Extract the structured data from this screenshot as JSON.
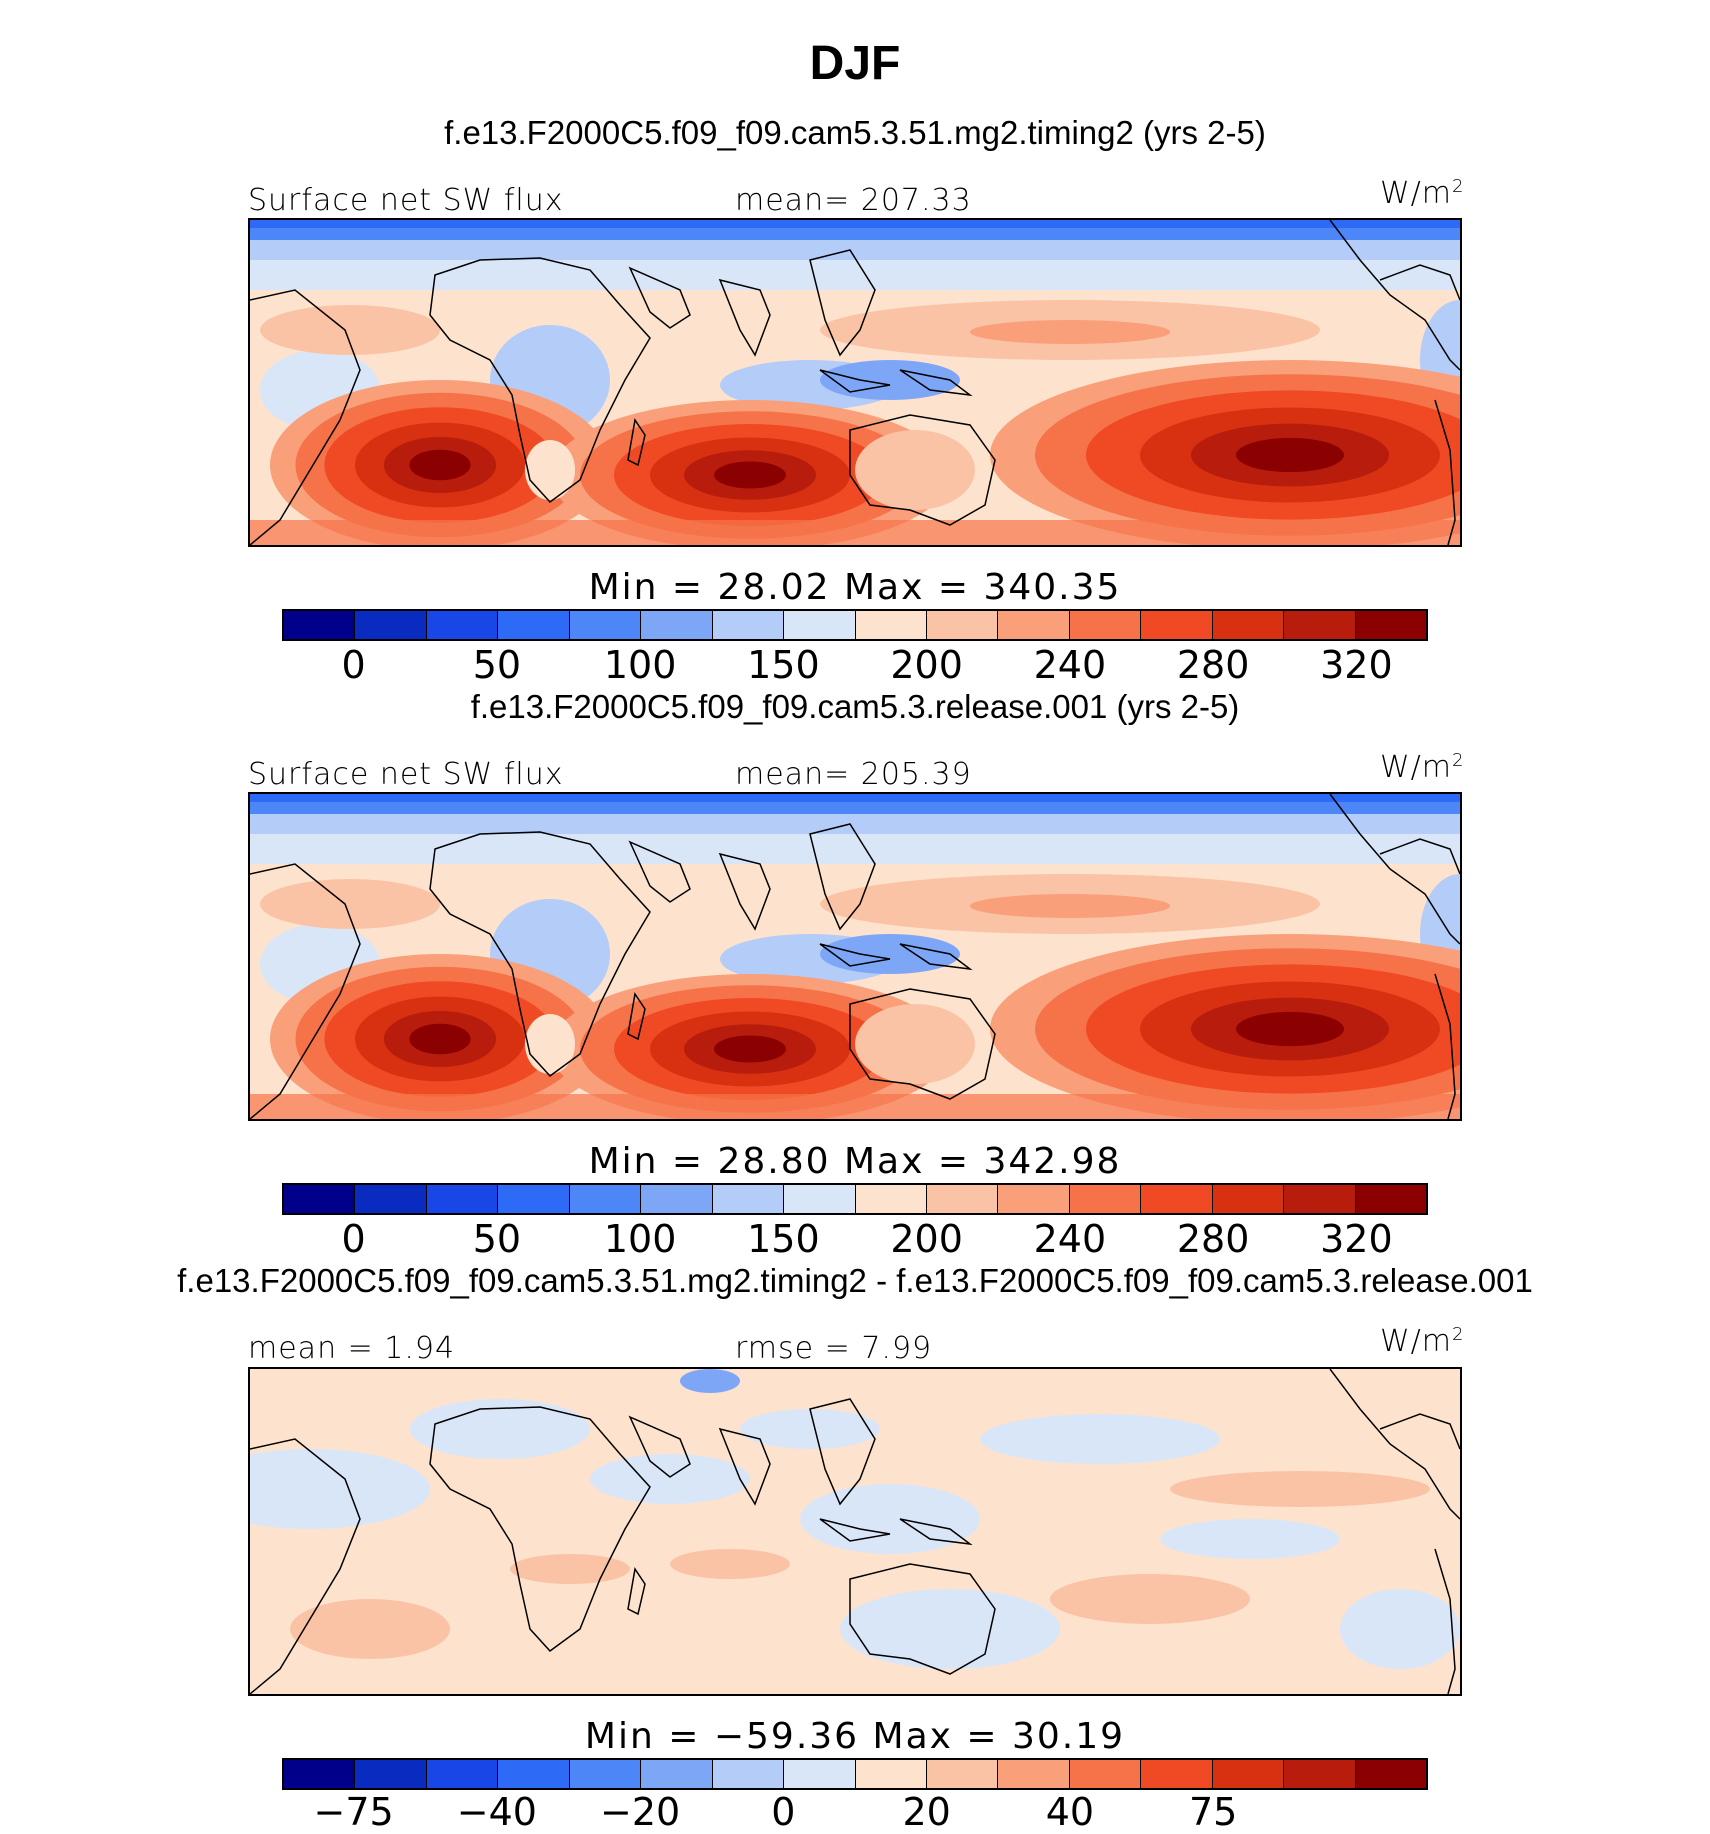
{
  "title": "DJF",
  "panels": [
    {
      "case": "f.e13.F2000C5.f09_f09.cam5.3.51.mg2.timing2 (yrs 2-5)",
      "left_label": "Surface net SW flux",
      "center_label": "mean= 207.33",
      "unit": "W/m",
      "unit_sup": "2",
      "minmax": "Min =  28.02 Max = 340.35",
      "field_type": "absolute",
      "cbar_ticks": [
        "0",
        "50",
        "100",
        "150",
        "200",
        "240",
        "280",
        "320"
      ]
    },
    {
      "case": "f.e13.F2000C5.f09_f09.cam5.3.release.001 (yrs 2-5)",
      "left_label": "Surface net SW flux",
      "center_label": "mean= 205.39",
      "unit": "W/m",
      "unit_sup": "2",
      "minmax": "Min =  28.80 Max = 342.98",
      "field_type": "absolute",
      "cbar_ticks": [
        "0",
        "50",
        "100",
        "150",
        "200",
        "240",
        "280",
        "320"
      ]
    },
    {
      "case": "f.e13.F2000C5.f09_f09.cam5.3.51.mg2.timing2 - f.e13.F2000C5.f09_f09.cam5.3.release.001",
      "left_label": "mean =   1.94",
      "center_label": "rmse =   7.99",
      "unit": "W/m",
      "unit_sup": "2",
      "minmax": "Min = −59.36 Max =  30.19",
      "field_type": "difference",
      "cbar_ticks": [
        "−75",
        "−40",
        "−20",
        "0",
        "20",
        "40",
        "75"
      ]
    }
  ],
  "colormap": [
    "#00008b",
    "#0a2bc0",
    "#1946e6",
    "#2d6af5",
    "#4d86f7",
    "#7ea6f7",
    "#b3ccf8",
    "#d9e6f8",
    "#fde3cd",
    "#fbc3a6",
    "#f99f7a",
    "#f6734a",
    "#f04a25",
    "#d83112",
    "#b81c0c",
    "#8b0000"
  ]
}
